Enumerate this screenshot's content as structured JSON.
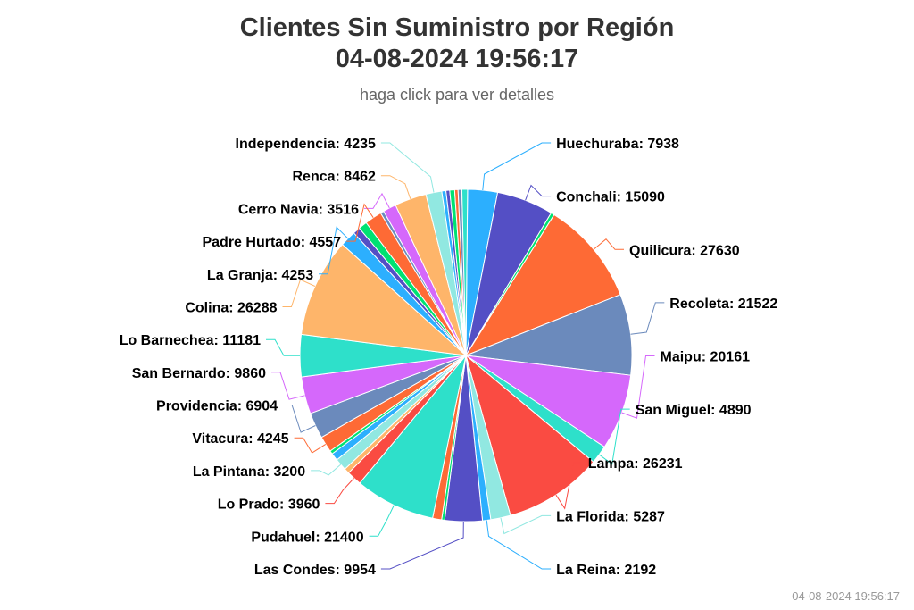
{
  "chart_data": {
    "type": "pie",
    "title": "Clientes Sin Suministro por Región",
    "title_timestamp": "04-08-2024 19:56:17",
    "subtitle": "haga click para ver detalles",
    "footer_timestamp": "04-08-2024 19:56:17",
    "slices": [
      {
        "label": "Huechuraba",
        "value": 7938,
        "color": "#2caffe",
        "text": "Huechuraba: 7938"
      },
      {
        "label": "Conchali",
        "value": 15090,
        "color": "#544fc5",
        "text": "Conchali: 15090"
      },
      {
        "label": "",
        "value": 900,
        "color": "#00e272",
        "text": ""
      },
      {
        "label": "Quilicura",
        "value": 27630,
        "color": "#fe6a35",
        "text": "Quilicura: 27630"
      },
      {
        "label": "Recoleta",
        "value": 21522,
        "color": "#6b8abc",
        "text": "Recoleta: 21522"
      },
      {
        "label": "Maipu",
        "value": 20161,
        "color": "#d568fb",
        "text": "Maipu: 20161"
      },
      {
        "label": "San Miguel",
        "value": 4890,
        "color": "#2ee0ca",
        "text": "San Miguel: 4890"
      },
      {
        "label": "Lampa",
        "value": 26231,
        "color": "#fa4b42",
        "text": "Lampa: 26231"
      },
      {
        "label": "La Florida",
        "value": 5287,
        "color": "#91e8e1",
        "text": "La Florida: 5287"
      },
      {
        "label": "La Reina",
        "value": 2192,
        "color": "#2caffe",
        "text": "La Reina: 2192"
      },
      {
        "label": "Las Condes",
        "value": 9954,
        "color": "#544fc5",
        "text": "Las Condes: 9954"
      },
      {
        "label": "",
        "value": 800,
        "color": "#00e272",
        "text": ""
      },
      {
        "label": "",
        "value": 2400,
        "color": "#fe6a35",
        "text": ""
      },
      {
        "label": "Pudahuel",
        "value": 21400,
        "color": "#2ee0ca",
        "text": "Pudahuel: 21400"
      },
      {
        "label": "Lo Prado",
        "value": 3960,
        "color": "#fa4b42",
        "text": "Lo Prado: 3960"
      },
      {
        "label": "",
        "value": 1400,
        "color": "#feb56a",
        "text": ""
      },
      {
        "label": "La Pintana",
        "value": 3200,
        "color": "#91e8e1",
        "text": "La Pintana: 3200"
      },
      {
        "label": "",
        "value": 2000,
        "color": "#2caffe",
        "text": ""
      },
      {
        "label": "",
        "value": 900,
        "color": "#00e272",
        "text": ""
      },
      {
        "label": "Vitacura",
        "value": 4245,
        "color": "#fe6a35",
        "text": "Vitacura: 4245"
      },
      {
        "label": "Providencia",
        "value": 6904,
        "color": "#6b8abc",
        "text": "Providencia: 6904"
      },
      {
        "label": "San Bernardo",
        "value": 9860,
        "color": "#d568fb",
        "text": "San Bernardo: 9860"
      },
      {
        "label": "Lo Barnechea",
        "value": 11181,
        "color": "#2ee0ca",
        "text": "Lo Barnechea: 11181"
      },
      {
        "label": "Colina",
        "value": 26288,
        "color": "#feb56a",
        "text": "Colina: 26288"
      },
      {
        "label": "La Granja",
        "value": 4253,
        "color": "#2caffe",
        "text": "La Granja: 4253"
      },
      {
        "label": "",
        "value": 1900,
        "color": "#544fc5",
        "text": ""
      },
      {
        "label": "",
        "value": 2300,
        "color": "#00e272",
        "text": ""
      },
      {
        "label": "Padre Hurtado",
        "value": 4557,
        "color": "#fe6a35",
        "text": "Padre Hurtado: 4557"
      },
      {
        "label": "",
        "value": 900,
        "color": "#6b8abc",
        "text": ""
      },
      {
        "label": "Cerro Navia",
        "value": 3516,
        "color": "#d568fb",
        "text": "Cerro Navia: 3516"
      },
      {
        "label": "Renca",
        "value": 8462,
        "color": "#feb56a",
        "text": "Renca: 8462"
      },
      {
        "label": "Independencia",
        "value": 4235,
        "color": "#91e8e1",
        "text": "Independencia: 4235"
      },
      {
        "label": "",
        "value": 1100,
        "color": "#2caffe",
        "text": ""
      },
      {
        "label": "",
        "value": 1000,
        "color": "#544fc5",
        "text": ""
      },
      {
        "label": "",
        "value": 1300,
        "color": "#00e272",
        "text": ""
      },
      {
        "label": "",
        "value": 900,
        "color": "#fe6a35",
        "text": ""
      },
      {
        "label": "",
        "value": 1000,
        "color": "#6b8abc",
        "text": ""
      },
      {
        "label": "",
        "value": 1500,
        "color": "#2ee0ca",
        "text": ""
      }
    ]
  }
}
